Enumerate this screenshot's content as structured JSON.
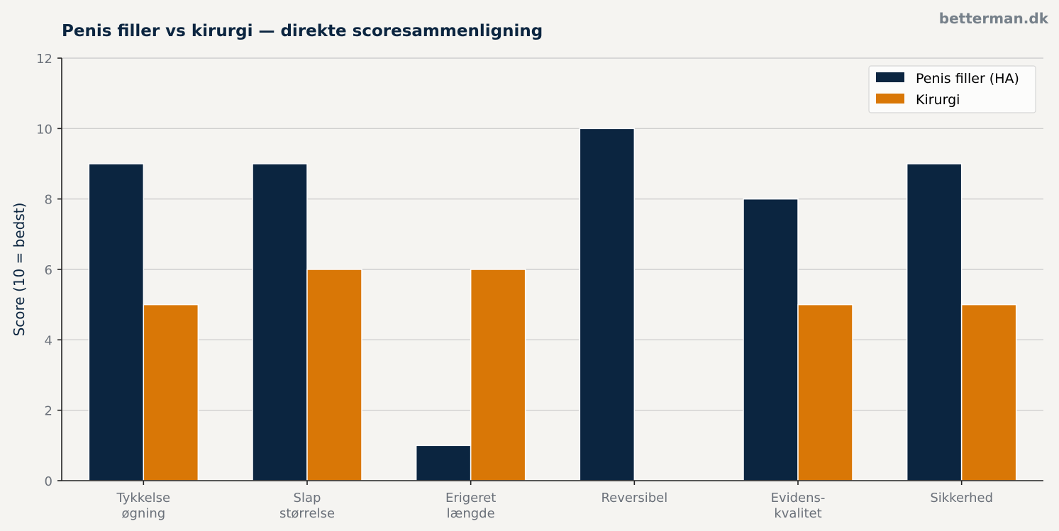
{
  "brand": "betterman.dk",
  "chart_data": {
    "type": "bar",
    "title": "Penis filler vs kirurgi — direkte scoresammenligning",
    "xlabel": "",
    "ylabel": "Score (10 = bedst)",
    "ylim": [
      0,
      12
    ],
    "yticks": [
      0,
      2,
      4,
      6,
      8,
      10,
      12
    ],
    "grid": true,
    "legend_position": "top-right",
    "categories": [
      [
        "Tykkelse",
        "øgning"
      ],
      [
        "Slap",
        "størrelse"
      ],
      [
        "Erigeret",
        "længde"
      ],
      [
        "Reversibel"
      ],
      [
        "Evidens-",
        "kvalitet"
      ],
      [
        "Sikkerhed"
      ]
    ],
    "series": [
      {
        "name": "Penis filler (HA)",
        "color": "#0b2540",
        "values": [
          9,
          9,
          1,
          10,
          8,
          9
        ]
      },
      {
        "name": "Kirurgi",
        "color": "#d97706",
        "values": [
          5,
          6,
          6,
          0,
          5,
          5
        ]
      }
    ]
  }
}
